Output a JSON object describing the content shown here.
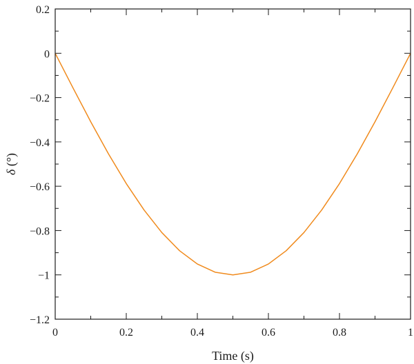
{
  "chart_data": {
    "type": "line",
    "title": "",
    "xlabel": "Time (s)",
    "ylabel_symbol": "δ",
    "ylabel_unit": " (°)",
    "xlim": [
      0,
      1
    ],
    "ylim": [
      -1.2,
      0.2
    ],
    "x_ticks": [
      0,
      0.2,
      0.4,
      0.6,
      0.8,
      1
    ],
    "x_tick_labels": [
      "0",
      "0.2",
      "0.4",
      "0.6",
      "0.8",
      "1"
    ],
    "y_ticks": [
      0.2,
      0,
      -0.2,
      -0.4,
      -0.6,
      -0.8,
      -1,
      -1.2
    ],
    "y_tick_labels": [
      "0.2",
      "0",
      "−0.2",
      "−0.4",
      "−0.6",
      "−0.8",
      "−1",
      "−1.2"
    ],
    "grid": false,
    "series": [
      {
        "color": "#f08a1c",
        "x": [
          0,
          0.05,
          0.1,
          0.15,
          0.2,
          0.25,
          0.3,
          0.35,
          0.4,
          0.45,
          0.5,
          0.55,
          0.6,
          0.65,
          0.7,
          0.75,
          0.8,
          0.85,
          0.9,
          0.95,
          1
        ],
        "y": [
          0,
          -0.156,
          -0.309,
          -0.454,
          -0.588,
          -0.707,
          -0.809,
          -0.891,
          -0.951,
          -0.988,
          -1.0,
          -0.988,
          -0.951,
          -0.891,
          -0.809,
          -0.707,
          -0.588,
          -0.454,
          -0.309,
          -0.156,
          0
        ]
      }
    ]
  }
}
